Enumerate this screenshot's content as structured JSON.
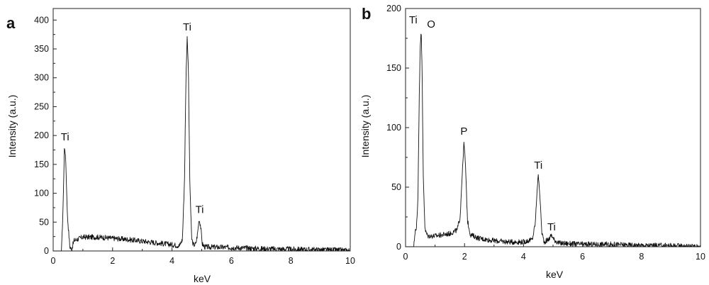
{
  "chart_data": [
    {
      "type": "line",
      "panel": "a",
      "title": "",
      "xlabel": "keV",
      "ylabel": "Intensity (a.u.)",
      "xlim": [
        0,
        10
      ],
      "ylim": [
        0,
        420
      ],
      "xticks": [
        0,
        2,
        4,
        6,
        8,
        10
      ],
      "yticks": [
        0,
        50,
        100,
        150,
        200,
        250,
        300,
        350,
        400
      ],
      "grid": false,
      "legend": "none",
      "baseline_profile": [
        [
          0.0,
          0
        ],
        [
          0.28,
          0
        ],
        [
          0.33,
          70
        ],
        [
          0.38,
          182
        ],
        [
          0.42,
          160
        ],
        [
          0.48,
          60
        ],
        [
          0.56,
          8
        ],
        [
          0.62,
          2
        ],
        [
          0.7,
          18
        ],
        [
          1.0,
          24
        ],
        [
          1.5,
          24
        ],
        [
          2.0,
          22
        ],
        [
          2.5,
          20
        ],
        [
          3.0,
          17
        ],
        [
          3.5,
          14
        ],
        [
          4.0,
          11
        ],
        [
          4.25,
          9
        ],
        [
          4.35,
          20
        ],
        [
          4.42,
          120
        ],
        [
          4.47,
          300
        ],
        [
          4.51,
          372
        ],
        [
          4.55,
          320
        ],
        [
          4.6,
          120
        ],
        [
          4.66,
          22
        ],
        [
          4.72,
          10
        ],
        [
          4.8,
          12
        ],
        [
          4.86,
          30
        ],
        [
          4.91,
          55
        ],
        [
          4.96,
          45
        ],
        [
          5.02,
          12
        ],
        [
          5.1,
          7
        ],
        [
          6.0,
          6
        ],
        [
          7.0,
          4
        ],
        [
          8.0,
          3
        ],
        [
          9.0,
          2
        ],
        [
          10.0,
          1
        ]
      ],
      "peaks": [
        {
          "label": "Ti",
          "x": 0.4,
          "y": 182
        },
        {
          "label": "Ti",
          "x": 4.51,
          "y": 372
        },
        {
          "label": "Ti",
          "x": 4.93,
          "y": 56
        }
      ]
    },
    {
      "type": "line",
      "panel": "b",
      "title": "",
      "xlabel": "keV",
      "ylabel": "Intensity (a.u.)",
      "xlim": [
        0,
        10
      ],
      "ylim": [
        0,
        200
      ],
      "xticks": [
        0,
        2,
        4,
        6,
        8,
        10
      ],
      "yticks": [
        0,
        50,
        100,
        150,
        200
      ],
      "grid": false,
      "legend": "none",
      "baseline_profile": [
        [
          0.0,
          0
        ],
        [
          0.28,
          0
        ],
        [
          0.33,
          15
        ],
        [
          0.36,
          12
        ],
        [
          0.42,
          40
        ],
        [
          0.46,
          120
        ],
        [
          0.5,
          170
        ],
        [
          0.53,
          182
        ],
        [
          0.56,
          150
        ],
        [
          0.6,
          60
        ],
        [
          0.66,
          14
        ],
        [
          0.75,
          9
        ],
        [
          1.0,
          9
        ],
        [
          1.5,
          11
        ],
        [
          1.75,
          14
        ],
        [
          1.85,
          25
        ],
        [
          1.92,
          60
        ],
        [
          1.98,
          88
        ],
        [
          2.03,
          70
        ],
        [
          2.1,
          22
        ],
        [
          2.2,
          10
        ],
        [
          2.5,
          7
        ],
        [
          3.0,
          5
        ],
        [
          3.5,
          4
        ],
        [
          4.0,
          4
        ],
        [
          4.3,
          6
        ],
        [
          4.4,
          20
        ],
        [
          4.46,
          48
        ],
        [
          4.5,
          60
        ],
        [
          4.55,
          45
        ],
        [
          4.62,
          12
        ],
        [
          4.7,
          4
        ],
        [
          4.85,
          6
        ],
        [
          4.95,
          10
        ],
        [
          5.03,
          6
        ],
        [
          5.2,
          3
        ],
        [
          6.0,
          2
        ],
        [
          7.0,
          2
        ],
        [
          8.0,
          1
        ],
        [
          9.0,
          1
        ],
        [
          10.0,
          0
        ]
      ],
      "peaks": [
        {
          "label": "Ti",
          "x": 0.5,
          "y": 182
        },
        {
          "label": "O",
          "x": 0.53,
          "y": 182
        },
        {
          "label": "P",
          "x": 1.98,
          "y": 88
        },
        {
          "label": "Ti",
          "x": 4.5,
          "y": 60
        },
        {
          "label": "Ti",
          "x": 4.95,
          "y": 10
        }
      ]
    }
  ]
}
